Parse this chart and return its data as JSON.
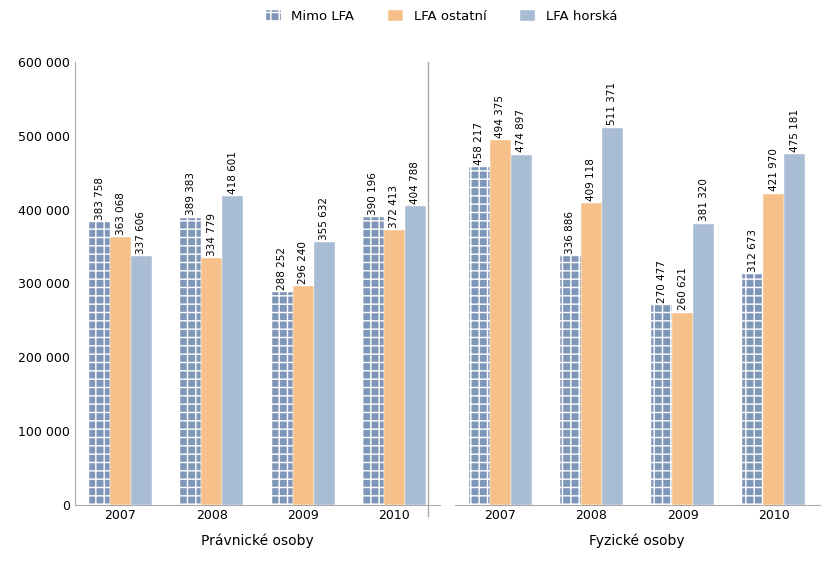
{
  "groups": [
    "Právnické osoby",
    "Fyzické osoby"
  ],
  "years": [
    "2007",
    "2008",
    "2009",
    "2010"
  ],
  "series": [
    "Mimo LFA",
    "LFA ostatní",
    "LFA horská"
  ],
  "values": {
    "Právnické osoby": {
      "2007": [
        383758,
        363068,
        337606
      ],
      "2008": [
        389383,
        334779,
        418601
      ],
      "2009": [
        288252,
        296240,
        355632
      ],
      "2010": [
        390196,
        372413,
        404788
      ]
    },
    "Fyzické osoby": {
      "2007": [
        458217,
        494375,
        474897
      ],
      "2008": [
        336886,
        409118,
        511371
      ],
      "2009": [
        270477,
        260621,
        381320
      ],
      "2010": [
        312673,
        421970,
        475181
      ]
    }
  },
  "colors": [
    "#8096b8",
    "#f5c08a",
    "#a8bcd4"
  ],
  "mimo_lfa_hatch": "++",
  "ylim": [
    0,
    600000
  ],
  "ytick_step": 100000,
  "bg_color": "#ffffff",
  "label_fontsize": 7.5,
  "legend_fontsize": 9.5,
  "group_label_fontsize": 10,
  "bar_width": 0.23,
  "divider_color": "#aaaaaa",
  "spine_color": "#aaaaaa"
}
